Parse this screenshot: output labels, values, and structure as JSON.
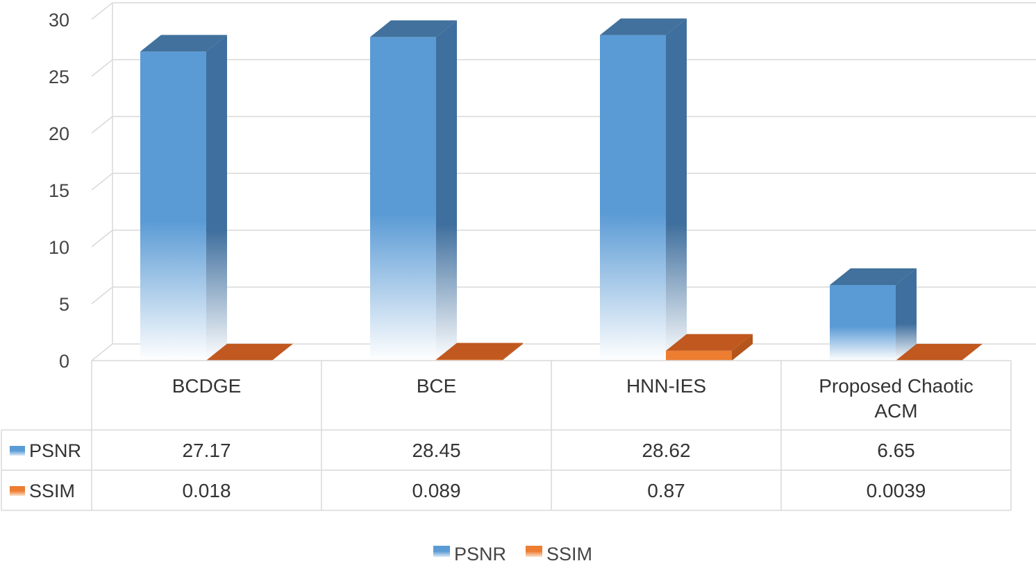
{
  "chart_data": {
    "type": "bar",
    "categories": [
      "BCDGE",
      "BCE",
      "HNN-IES",
      "Proposed Chaotic ACM"
    ],
    "series": [
      {
        "name": "PSNR",
        "values": [
          27.17,
          28.45,
          28.62,
          6.65
        ],
        "labels": [
          "27.17",
          "28.45",
          "28.62",
          "6.65"
        ],
        "color": "#5B9BD5"
      },
      {
        "name": "SSIM",
        "values": [
          0.018,
          0.089,
          0.87,
          0.0039
        ],
        "labels": [
          "0.018",
          "0.089",
          "0.87",
          "0.0039"
        ],
        "color": "#ED7D31"
      }
    ],
    "yticks": [
      "0",
      "5",
      "10",
      "15",
      "20",
      "25",
      "30"
    ],
    "ylim": [
      0,
      30
    ],
    "title": "",
    "xlabel": "",
    "ylabel": "",
    "grid": true,
    "data_table": true,
    "legend": "bottom"
  }
}
